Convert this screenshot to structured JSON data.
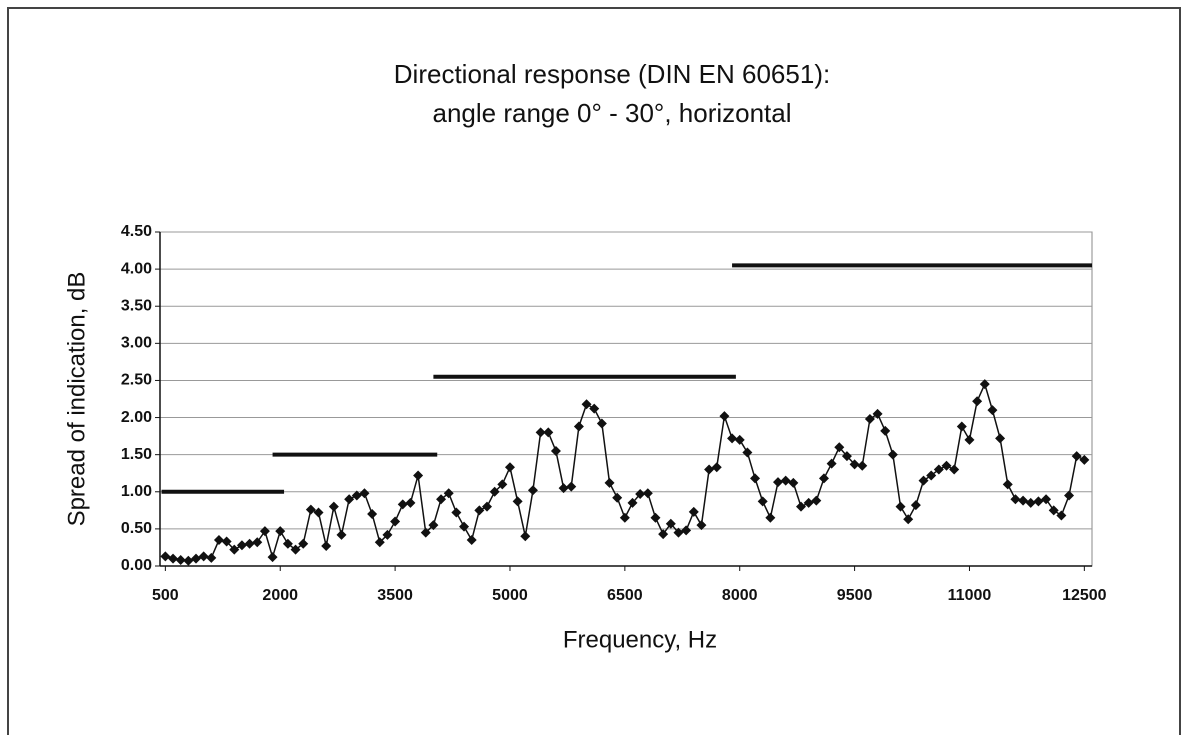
{
  "chart_data": {
    "type": "line",
    "title": [
      "Directional response (DIN EN 60651):",
      "angle range 0° - 30°, horizontal"
    ],
    "x_label": "Frequency, Hz",
    "y_label": "Spread of indication, dB",
    "xlim": [
      430,
      12600
    ],
    "ylim": [
      0,
      4.5
    ],
    "xticks": [
      500,
      2000,
      3500,
      5000,
      6500,
      8000,
      9500,
      11000,
      12500
    ],
    "yticks": [
      {
        "value": 0,
        "label": "0.00"
      },
      {
        "value": 0.5,
        "label": "0.50"
      },
      {
        "value": 1,
        "label": "1.00"
      },
      {
        "value": 1.5,
        "label": "1.50"
      },
      {
        "value": 2,
        "label": "2.00"
      },
      {
        "value": 2.5,
        "label": "2.50"
      },
      {
        "value": 3,
        "label": "3.00"
      },
      {
        "value": 3.5,
        "label": "3.50"
      },
      {
        "value": 4,
        "label": "4.00"
      },
      {
        "value": 4.5,
        "label": "4.50"
      }
    ],
    "grid": true,
    "x": [
      500,
      600,
      700,
      800,
      900,
      1000,
      1100,
      1200,
      1300,
      1400,
      1500,
      1600,
      1700,
      1800,
      1900,
      2000,
      2100,
      2200,
      2300,
      2400,
      2500,
      2600,
      2700,
      2800,
      2900,
      3000,
      3100,
      3200,
      3300,
      3400,
      3500,
      3600,
      3700,
      3800,
      3900,
      4000,
      4100,
      4200,
      4300,
      4400,
      4500,
      4600,
      4700,
      4800,
      4900,
      5000,
      5100,
      5200,
      5300,
      5400,
      5500,
      5600,
      5700,
      5800,
      5900,
      6000,
      6100,
      6200,
      6300,
      6400,
      6500,
      6600,
      6700,
      6800,
      6900,
      7000,
      7100,
      7200,
      7300,
      7400,
      7500,
      7600,
      7700,
      7800,
      7900,
      8000,
      8100,
      8200,
      8300,
      8400,
      8500,
      8600,
      8700,
      8800,
      8900,
      9000,
      9100,
      9200,
      9300,
      9400,
      9500,
      9600,
      9700,
      9800,
      9900,
      10000,
      10100,
      10200,
      10300,
      10400,
      10500,
      10600,
      10700,
      10800,
      10900,
      11000,
      11100,
      11200,
      11300,
      11400,
      11500,
      11600,
      11700,
      11800,
      11900,
      12000,
      12100,
      12200,
      12300,
      12400,
      12500
    ],
    "series": [
      {
        "color": "#111111",
        "values": [
          0.13,
          0.1,
          0.08,
          0.07,
          0.1,
          0.13,
          0.11,
          0.35,
          0.33,
          0.22,
          0.28,
          0.3,
          0.32,
          0.47,
          0.12,
          0.47,
          0.3,
          0.22,
          0.3,
          0.76,
          0.72,
          0.27,
          0.8,
          0.42,
          0.9,
          0.95,
          0.98,
          0.7,
          0.32,
          0.42,
          0.6,
          0.83,
          0.85,
          1.22,
          0.45,
          0.55,
          0.9,
          0.98,
          0.72,
          0.53,
          0.35,
          0.75,
          0.8,
          1.0,
          1.1,
          1.33,
          0.87,
          0.4,
          1.02,
          1.8,
          1.8,
          1.55,
          1.05,
          1.07,
          1.88,
          2.18,
          2.12,
          1.92,
          1.12,
          0.92,
          0.65,
          0.85,
          0.97,
          0.98,
          0.65,
          0.43,
          0.57,
          0.45,
          0.48,
          0.73,
          0.55,
          1.3,
          1.33,
          2.02,
          1.72,
          1.7,
          1.53,
          1.18,
          0.87,
          0.65,
          1.13,
          1.15,
          1.12,
          0.8,
          0.85,
          0.88,
          1.18,
          1.38,
          1.6,
          1.48,
          1.37,
          1.35,
          1.98,
          2.05,
          1.82,
          1.5,
          0.8,
          0.63,
          0.82,
          1.15,
          1.22,
          1.3,
          1.35,
          1.3,
          1.88,
          1.7,
          2.22,
          2.45,
          2.1,
          1.72,
          1.1,
          0.9,
          0.88,
          0.85,
          0.87,
          0.9,
          0.75,
          0.68,
          0.95,
          1.48,
          1.43
        ]
      }
    ],
    "limits": [
      {
        "x": [
          450,
          2050
        ],
        "values": [
          1,
          1
        ]
      },
      {
        "x": [
          1900,
          4050
        ],
        "values": [
          1.5,
          1.5
        ]
      },
      {
        "x": [
          4000,
          7950
        ],
        "values": [
          2.55,
          2.55
        ]
      },
      {
        "x": [
          7900,
          12600
        ],
        "values": [
          4.05,
          4.05
        ]
      }
    ]
  }
}
